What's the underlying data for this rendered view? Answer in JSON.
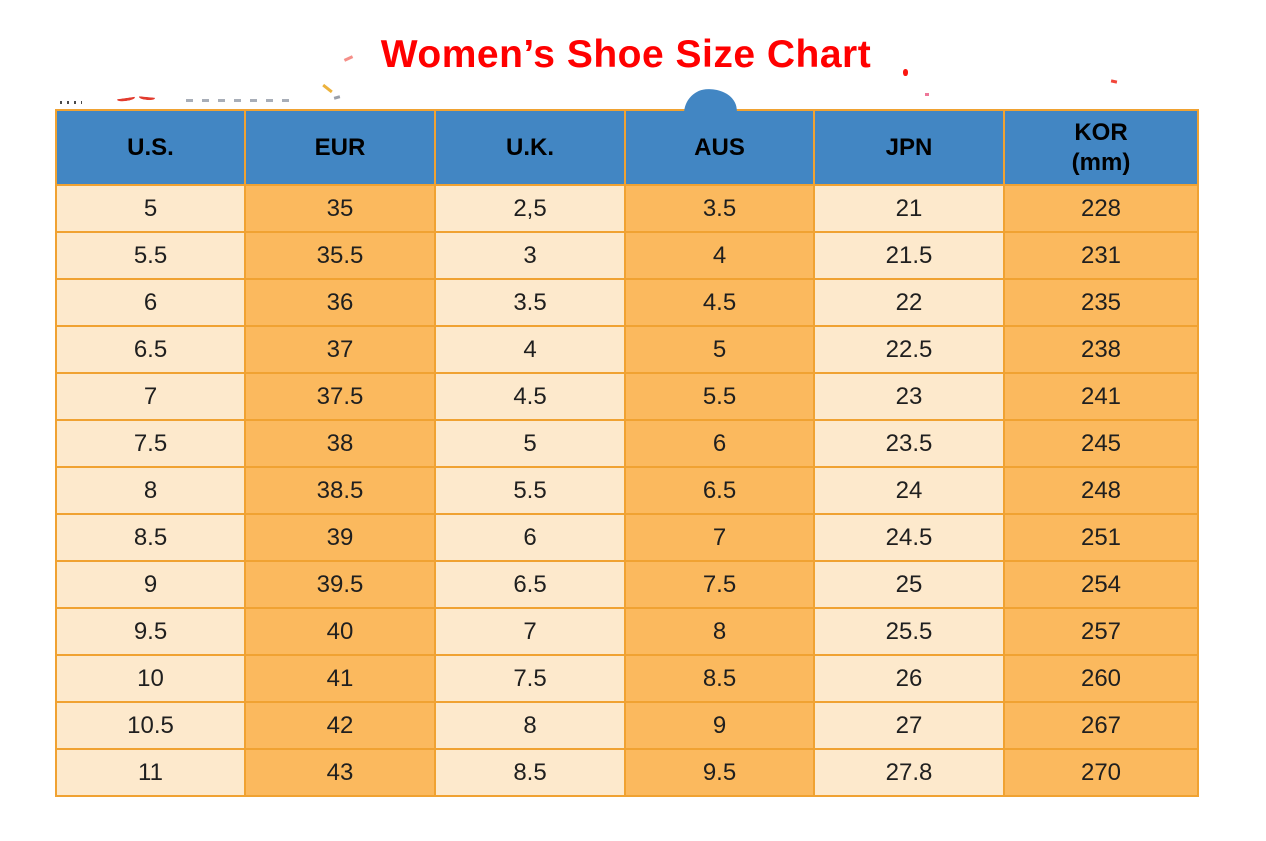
{
  "title": "Women’s Shoe Size Chart",
  "colors": {
    "title_red": "#ff0000",
    "header_blue": "#4286c3",
    "cell_orange": "#fbb95e",
    "cell_cream": "#fde9cc",
    "grid_orange": "#f0a232"
  },
  "chart_data": {
    "type": "table",
    "title": "Women’s Shoe Size Chart",
    "columns": [
      {
        "key": "us",
        "label": "U.S.",
        "line2": ""
      },
      {
        "key": "eur",
        "label": "EUR",
        "line2": ""
      },
      {
        "key": "uk",
        "label": "U.K.",
        "line2": ""
      },
      {
        "key": "aus",
        "label": "AUS",
        "line2": ""
      },
      {
        "key": "jpn",
        "label": "JPN",
        "line2": ""
      },
      {
        "key": "kor",
        "label": "KOR",
        "line2": "(mm)"
      }
    ],
    "rows": [
      [
        "5",
        "35",
        "2,5",
        "3.5",
        "21",
        "228"
      ],
      [
        "5.5",
        "35.5",
        "3",
        "4",
        "21.5",
        "231"
      ],
      [
        "6",
        "36",
        "3.5",
        "4.5",
        "22",
        "235"
      ],
      [
        "6.5",
        "37",
        "4",
        "5",
        "22.5",
        "238"
      ],
      [
        "7",
        "37.5",
        "4.5",
        "5.5",
        "23",
        "241"
      ],
      [
        "7.5",
        "38",
        "5",
        "6",
        "23.5",
        "245"
      ],
      [
        "8",
        "38.5",
        "5.5",
        "6.5",
        "24",
        "248"
      ],
      [
        "8.5",
        "39",
        "6",
        "7",
        "24.5",
        "251"
      ],
      [
        "9",
        "39.5",
        "6.5",
        "7.5",
        "25",
        "254"
      ],
      [
        "9.5",
        "40",
        "7",
        "8",
        "25.5",
        "257"
      ],
      [
        "10",
        "41",
        "7.5",
        "8.5",
        "26",
        "260"
      ],
      [
        "10.5",
        "42",
        "8",
        "9",
        "27",
        "267"
      ],
      [
        "11",
        "43",
        "8.5",
        "9.5",
        "27.8",
        "270"
      ]
    ]
  }
}
